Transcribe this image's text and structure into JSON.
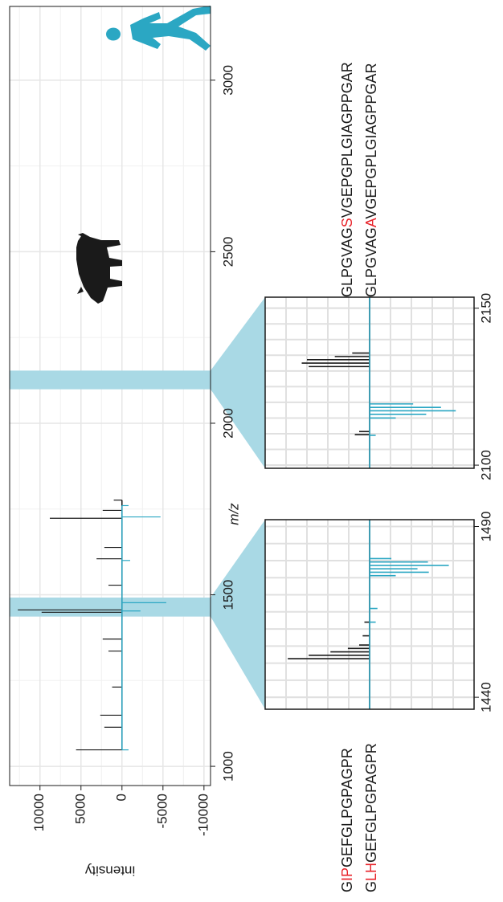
{
  "chart_data": [
    {
      "type": "spike",
      "ylabel": "intensity",
      "xlabel": "m/z",
      "xlim": [
        944,
        3215
      ],
      "ylim": [
        -10800,
        13700
      ],
      "xticks": [
        1000,
        1500,
        2000,
        2500,
        3000
      ],
      "yticks": [
        10000,
        5000,
        0,
        -5000,
        -10000
      ],
      "grid": true,
      "highlight_color": "#a9d9e5",
      "series": [
        {
          "color": "#1a1a1a",
          "x": [
            1048,
            1114,
            1149,
            1231,
            1336,
            1371,
            1449,
            1456,
            1528,
            1605,
            1638,
            1723,
            1746,
            1776
          ],
          "values": [
            5600,
            2150,
            2650,
            1200,
            1650,
            2350,
            9800,
            12700,
            1650,
            3100,
            2150,
            8800,
            2350,
            1000
          ]
        },
        {
          "color": "#2ba7c3",
          "x": [
            1048,
            1453,
            1477,
            1600,
            1727,
            1760
          ],
          "values": [
            -800,
            -2250,
            -5400,
            -1000,
            -4700,
            -800
          ]
        }
      ]
    },
    {
      "type": "spike",
      "xlim": [
        1436.5,
        1492
      ],
      "ylim": [
        -12000,
        12000
      ],
      "xticks": [
        1440,
        1490
      ],
      "grid": true,
      "series": [
        {
          "color": "#1a1a1a",
          "x": [
            1451.3,
            1452.3,
            1453.3,
            1454.3,
            1455.3,
            1458,
            1462
          ],
          "values": [
            9400,
            7000,
            4500,
            2500,
            1200,
            800,
            600
          ]
        },
        {
          "color": "#2ba7c3",
          "x": [
            1462,
            1466,
            1475.6,
            1476.6,
            1477.6,
            1478.6,
            1479.6,
            1480.6
          ],
          "values": [
            -700,
            -900,
            -3000,
            -6800,
            -5500,
            -9100,
            -6700,
            -2500
          ]
        }
      ],
      "annotations": [
        [
          {
            "text": "G"
          },
          {
            "text": "IP",
            "color": "#e8242b"
          },
          {
            "text": "GEFGLPGPAGPR"
          }
        ],
        [
          {
            "text": "G"
          },
          {
            "text": "LH",
            "color": "#e8242b"
          },
          {
            "text": "GEFGLPGPAGPR"
          }
        ]
      ]
    },
    {
      "type": "spike",
      "xlim": [
        2099,
        2153.5
      ],
      "ylim": [
        -12000,
        12000
      ],
      "xticks": [
        2100,
        2150
      ],
      "grid": true,
      "series": [
        {
          "color": "#1a1a1a",
          "x": [
            2109.7,
            2110.7,
            2131.4,
            2132.5,
            2133.6,
            2134.6,
            2135.7
          ],
          "values": [
            1700,
            1200,
            7000,
            7800,
            7200,
            4000,
            2000
          ]
        },
        {
          "color": "#2ba7c3",
          "x": [
            2109.5,
            2115,
            2116.2,
            2117.3,
            2118.4,
            2119.5
          ],
          "values": [
            -700,
            -3000,
            -6500,
            -9900,
            -8200,
            -5000
          ]
        }
      ],
      "annotations": [
        [
          {
            "text": "GLPGVAG"
          },
          {
            "text": "S",
            "color": "#e8242b"
          },
          {
            "text": "VGEPGPLGIAGPPGAR"
          }
        ],
        [
          {
            "text": "GLPGVAG"
          },
          {
            "text": "A",
            "color": "#e8242b"
          },
          {
            "text": "VGEPGPLGIAGPPGAR"
          }
        ]
      ]
    }
  ]
}
